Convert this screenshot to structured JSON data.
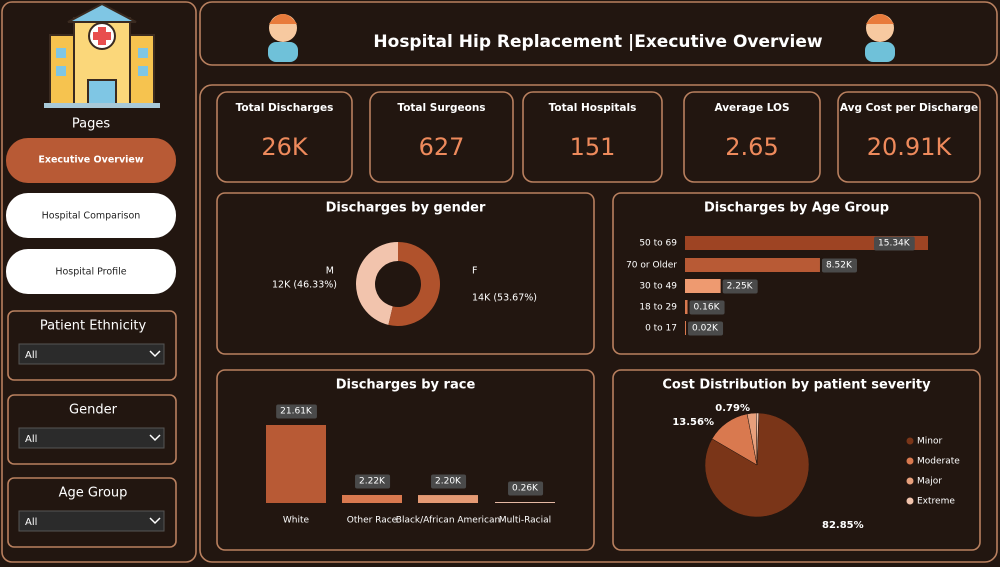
{
  "header": {
    "title": "Hospital Hip Replacement |Executive Overview"
  },
  "sidebar": {
    "pages_label": "Pages",
    "nav": [
      "Executive Overview",
      "Hospital Comparison",
      "Hospital Profile"
    ],
    "filters": [
      {
        "label": "Patient Ethnicity",
        "value": "All"
      },
      {
        "label": "Gender",
        "value": "All"
      },
      {
        "label": "Age Group",
        "value": "All"
      }
    ]
  },
  "kpis": [
    {
      "label": "Total Discharges",
      "value": "26K"
    },
    {
      "label": "Total Surgeons",
      "value": "627"
    },
    {
      "label": "Total Hospitals",
      "value": "151"
    },
    {
      "label": "Average LOS",
      "value": "2.65"
    },
    {
      "label": "Avg Cost per Discharge",
      "value": "20.91K"
    }
  ],
  "chart_data": [
    {
      "type": "donut",
      "title": "Discharges by gender",
      "categories": [
        "M",
        "F"
      ],
      "values": [
        46.33,
        53.67
      ],
      "value_labels": [
        "12K (46.33%)",
        "14K (53.67%)"
      ],
      "colors": [
        "#f2c4ad",
        "#b0522c"
      ]
    },
    {
      "type": "hbar",
      "title": "Discharges by Age Group",
      "categories": [
        "50 to 69",
        "70 or Older",
        "30 to 49",
        "18 to 29",
        "0 to 17"
      ],
      "values": [
        15.34,
        8.52,
        2.25,
        0.16,
        0.02
      ],
      "value_labels": [
        "15.34K",
        "8.52K",
        "2.25K",
        "0.16K",
        "0.02K"
      ],
      "colors": [
        "#9e4423",
        "#b85a35",
        "#ee9a70",
        "#d9794f",
        "#d9794f"
      ]
    },
    {
      "type": "bar",
      "title": "Discharges by race",
      "categories": [
        "White",
        "Other Race",
        "Black/African American",
        "Multi-Racial"
      ],
      "values": [
        21.61,
        2.22,
        2.2,
        0.26
      ],
      "value_labels": [
        "21.61K",
        "2.22K",
        "2.20K",
        "0.26K"
      ],
      "colors": [
        "#b85a35",
        "#d9794f",
        "#e59a74",
        "#f2c4ad"
      ]
    },
    {
      "type": "pie",
      "title": "Cost Distribution by patient severity",
      "categories": [
        "Minor",
        "Moderate",
        "Major",
        "Extreme"
      ],
      "values": [
        82.85,
        13.56,
        2.8,
        0.79
      ],
      "value_labels": [
        "82.85%",
        "13.56%",
        null,
        "0.79%"
      ],
      "colors": [
        "#7a3518",
        "#d9794f",
        "#e8a07c",
        "#f2c4ad"
      ]
    }
  ]
}
